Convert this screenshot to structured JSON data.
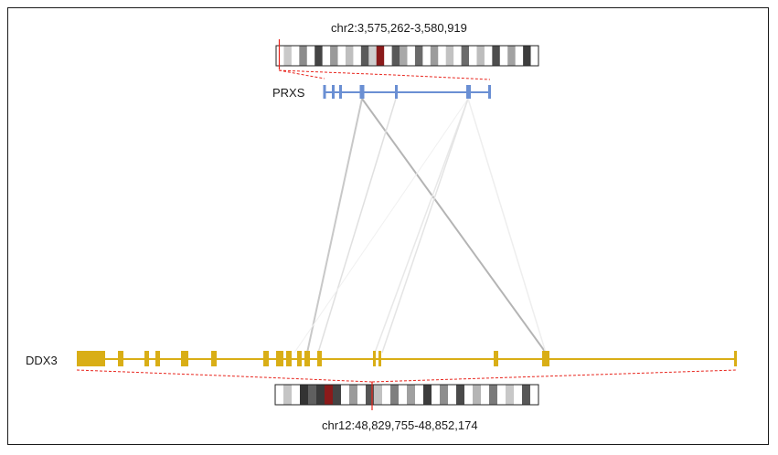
{
  "top": {
    "region": "chr2:3,575,262-3,580,919",
    "gene": "PRXS",
    "color": "#6a8fd3"
  },
  "bottom": {
    "region": "chr12:48,829,755-48,852,174",
    "gene": "DDX3",
    "color": "#d9ae16"
  },
  "marker_color": "#e8241c",
  "centromere_color": "#8b1a1a",
  "link_colors": [
    "#c8c8c8",
    "#b4b4b4",
    "#e2e2e2",
    "#eeeeee"
  ],
  "ideogram_bands": {
    "top": [
      "#ffffff",
      "#c9c9c9",
      "#ffffff",
      "#8c8c8c",
      "#ffffff",
      "#444444",
      "#ffffff",
      "#9a9a9a",
      "#ffffff",
      "#bfbfbf",
      "#ffffff",
      "#5a5a5a",
      "#cfcfcf",
      "#8b1a1a",
      "#ffffff",
      "#595959",
      "#a8a8a8",
      "#ffffff",
      "#6a6a6a",
      "#ffffff",
      "#9c9c9c",
      "#ffffff",
      "#c2c2c2",
      "#ffffff",
      "#6b6b6b",
      "#ffffff",
      "#bdbdbd",
      "#ffffff",
      "#4e4e4e",
      "#ffffff",
      "#a2a2a2",
      "#ffffff",
      "#3d3d3d",
      "#ffffff"
    ],
    "bottom": [
      "#ffffff",
      "#c5c5c5",
      "#ffffff",
      "#333333",
      "#5f5f5f",
      "#3a3a3a",
      "#8b1a1a",
      "#444444",
      "#ffffff",
      "#9b9b9b",
      "#ffffff",
      "#555555",
      "#c1c1c1",
      "#ffffff",
      "#7f7f7f",
      "#ffffff",
      "#a0a0a0",
      "#ffffff",
      "#3c3c3c",
      "#ffffff",
      "#8e8e8e",
      "#ffffff",
      "#4a4a4a",
      "#ffffff",
      "#b5b5b5",
      "#ffffff",
      "#7a7a7a",
      "#ffffff",
      "#c8c8c8",
      "#ffffff",
      "#585858",
      "#ffffff"
    ]
  }
}
